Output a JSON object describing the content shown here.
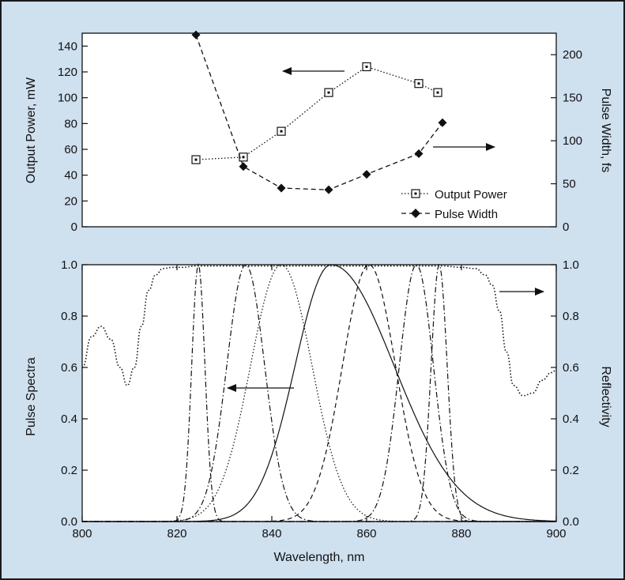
{
  "chart_data": [
    {
      "type": "line",
      "xlim": [
        800,
        900
      ],
      "x_ticks": [],
      "left_axis": {
        "label": "Output Power, mW",
        "lim": [
          0,
          150
        ],
        "ticks": [
          0,
          20,
          40,
          60,
          80,
          100,
          120,
          140
        ]
      },
      "right_axis": {
        "label": "Pulse Width, fs",
        "lim": [
          0,
          225
        ],
        "ticks": [
          0,
          50,
          100,
          150,
          200
        ]
      },
      "series": [
        {
          "name": "Output Power",
          "axis": "left",
          "style": "dotted",
          "marker": "square-dot",
          "x": [
            824,
            834,
            842,
            852,
            860,
            871,
            875
          ],
          "y": [
            52,
            54,
            74,
            104,
            124,
            111,
            104
          ]
        },
        {
          "name": "Pulse Width",
          "axis": "right",
          "style": "dashed",
          "marker": "diamond",
          "x": [
            824,
            834,
            842,
            852,
            860,
            871,
            876
          ],
          "y": [
            223,
            70,
            45,
            43,
            61,
            85,
            121
          ]
        }
      ],
      "legend_position": "lower-right",
      "annotations": [
        "arrow pointing left toward Output Power axis",
        "arrow pointing right toward Pulse Width axis"
      ]
    },
    {
      "type": "line",
      "xlabel": "Wavelength, nm",
      "xlim": [
        800,
        900
      ],
      "x_ticks": [
        800,
        820,
        840,
        860,
        880,
        900
      ],
      "left_axis": {
        "label": "Pulse Spectra",
        "lim": [
          0,
          1
        ],
        "ticks": [
          "0.0",
          "0.2",
          "0.4",
          "0.6",
          "0.8",
          "1.0"
        ]
      },
      "right_axis": {
        "label": "Reflectivity",
        "lim": [
          0,
          1
        ],
        "ticks": [
          "0.0",
          "0.2",
          "0.4",
          "0.6",
          "0.8",
          "1.0"
        ]
      },
      "reflectivity": {
        "axis": "right",
        "style": "dotted",
        "x": [
          800,
          802,
          804,
          806,
          808,
          809.5,
          811,
          812.5,
          814,
          815.5,
          817,
          819,
          821,
          824,
          830,
          850,
          870,
          876,
          880,
          883,
          885,
          886.5,
          888,
          889.5,
          891,
          893,
          895,
          897,
          899,
          900
        ],
        "y": [
          0.6,
          0.72,
          0.76,
          0.71,
          0.6,
          0.53,
          0.6,
          0.76,
          0.9,
          0.96,
          0.985,
          0.99,
          0.99,
          0.995,
          0.995,
          0.995,
          0.995,
          0.995,
          0.99,
          0.985,
          0.96,
          0.92,
          0.82,
          0.66,
          0.53,
          0.49,
          0.5,
          0.55,
          0.58,
          0.59
        ]
      },
      "spectra": [
        {
          "center": 824.5,
          "sigma": 1.4,
          "style": "dash-dot"
        },
        {
          "center": 834.5,
          "sigma": 4.0,
          "style": "dash-dot"
        },
        {
          "center": 842.0,
          "sigma": 6.5,
          "style": "dotted"
        },
        {
          "center": 852.5,
          "sigma": 7.6,
          "style": "solid",
          "long_tail": true
        },
        {
          "center": 860.5,
          "sigma": 5.6,
          "style": "dashed"
        },
        {
          "center": 870.5,
          "sigma": 3.6,
          "style": "dash-dot"
        },
        {
          "center": 875.3,
          "sigma": 1.7,
          "style": "dash-dot"
        }
      ],
      "annotations": [
        "arrow pointing left toward Pulse Spectra axis",
        "arrow pointing right toward Reflectivity axis"
      ]
    }
  ],
  "legend": {
    "output_power": "Output Power",
    "pulse_width": "Pulse Width"
  }
}
